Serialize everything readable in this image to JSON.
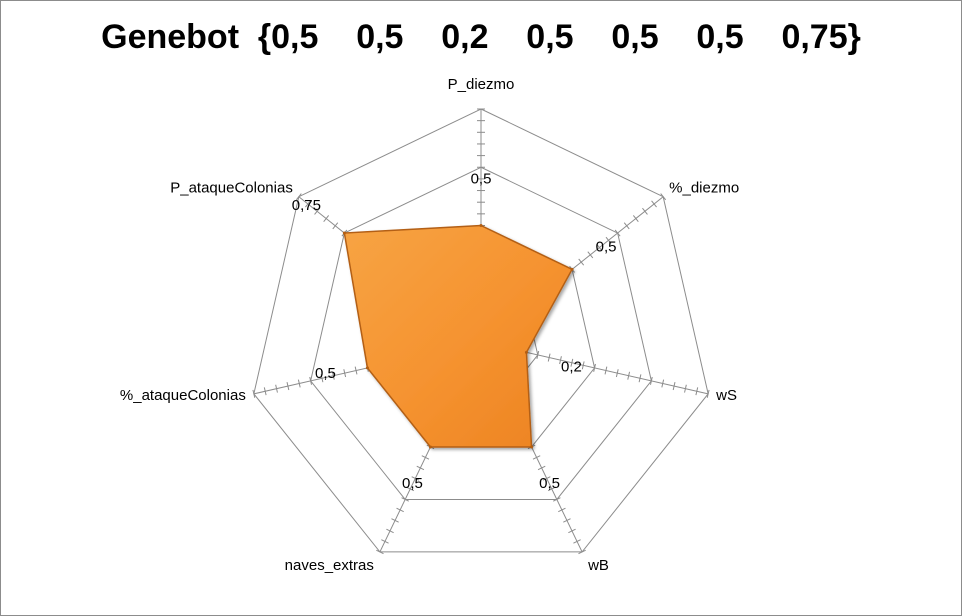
{
  "chart_data": {
    "type": "radar",
    "title": "Genebot  {0,5    0,5    0,2    0,5    0,5    0,5    0,75}",
    "axes": [
      "P_diezmo",
      "%_diezmo",
      "wS",
      "wB",
      "naves_extras",
      "%_ataqueColonias",
      "P_ataqueColonias"
    ],
    "values": [
      0.5,
      0.5,
      0.2,
      0.5,
      0.5,
      0.5,
      0.75
    ],
    "value_labels": [
      "0,5",
      "0,5",
      "0,2",
      "0,5",
      "0,5",
      "0,5",
      "0,75"
    ],
    "range": [
      0,
      1
    ],
    "grid_rings": 4,
    "colors": {
      "fill": "#f5922f",
      "edge": "#b35e12",
      "grid": "#8c8c8c"
    }
  }
}
